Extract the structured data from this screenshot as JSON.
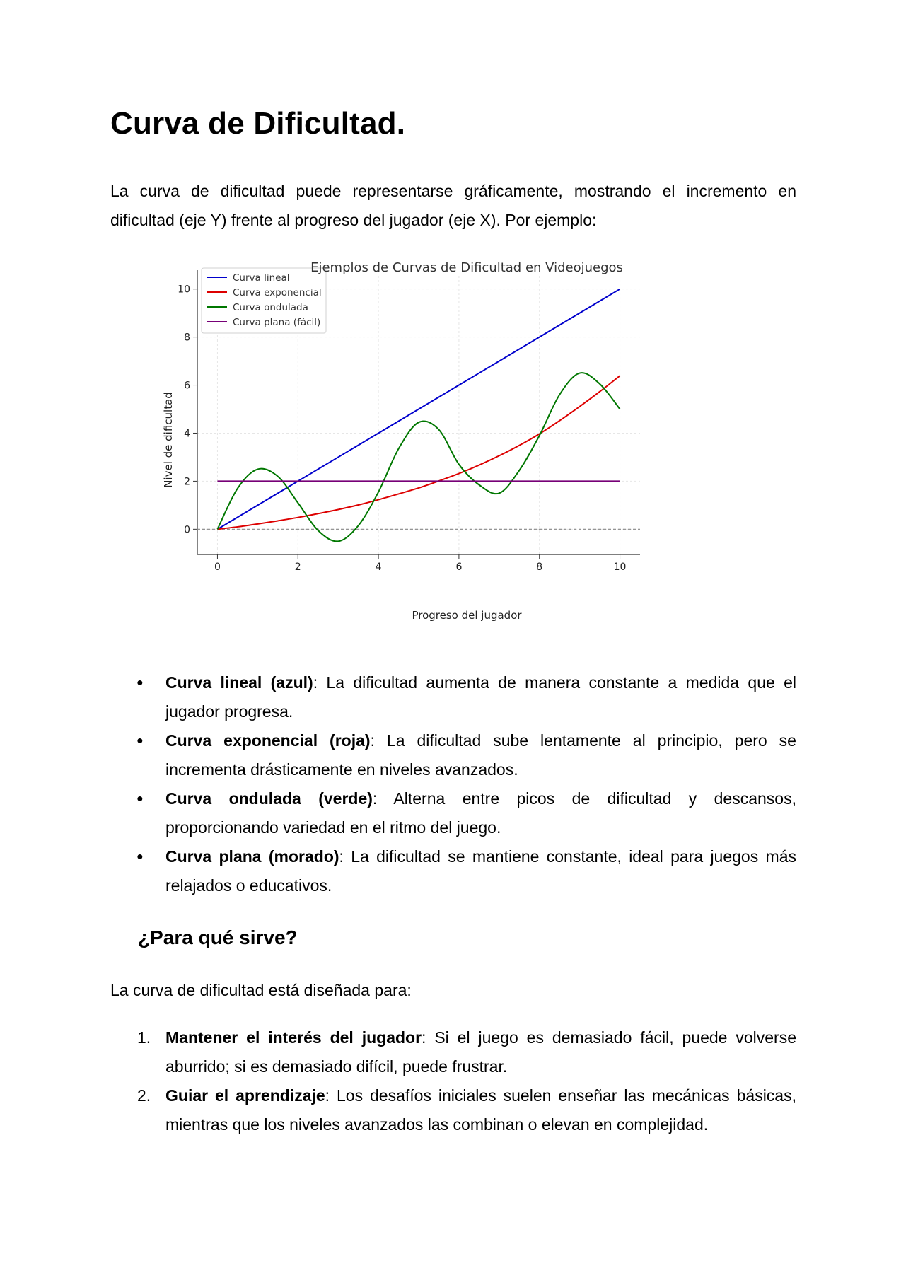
{
  "document": {
    "title": "Curva de Dificultad.",
    "intro": "La curva de dificultad puede representarse gráficamente, mostrando el incremento en dificultad (eje Y) frente al progreso del jugador (eje X). Por ejemplo:",
    "bullets": [
      {
        "term": "Curva lineal (azul)",
        "text": ": La dificultad aumenta de manera constante a medida que el jugador progresa."
      },
      {
        "term": "Curva exponencial (roja)",
        "text": ": La dificultad sube lentamente al principio, pero se incrementa drásticamente en niveles avanzados."
      },
      {
        "term": "Curva ondulada (verde)",
        "text": ": Alterna entre picos de dificultad y descansos, proporcionando variedad en el ritmo del juego."
      },
      {
        "term": "Curva plana (morado)",
        "text": ": La dificultad se mantiene constante, ideal para juegos más relajados o educativos."
      }
    ],
    "section_title": "¿Para qué sirve?",
    "section_lead": "La curva de dificultad está diseñada para:",
    "numbered": [
      {
        "num": "1.",
        "term": "Mantener el interés del jugador",
        "text": ": Si el juego es demasiado fácil, puede volverse aburrido; si es demasiado difícil, puede frustrar."
      },
      {
        "num": "2.",
        "term": "Guiar el aprendizaje",
        "text": ": Los desafíos iniciales suelen enseñar las mecánicas básicas, mientras que los niveles avanzados las combinan o elevan en complejidad."
      }
    ]
  },
  "chart_data": {
    "type": "line",
    "title": "Ejemplos de Curvas de Dificultad en Videojuegos",
    "xlabel": "Progreso del jugador",
    "ylabel": "Nivel de dificultad",
    "xlim": [
      -0.5,
      10.5
    ],
    "ylim": [
      -1.05,
      10.55
    ],
    "xticks": [
      0,
      2,
      4,
      6,
      8,
      10
    ],
    "yticks": [
      0,
      2,
      4,
      6,
      8,
      10
    ],
    "grid": true,
    "legend_position": "top-left",
    "reference_line": {
      "y": 0,
      "style": "dashed",
      "color": "#888888"
    },
    "x": [
      0,
      0.5,
      1,
      1.5,
      2,
      2.5,
      3,
      3.5,
      4,
      4.5,
      5,
      5.5,
      6,
      6.5,
      7,
      7.5,
      8,
      8.5,
      9,
      9.5,
      10
    ],
    "series": [
      {
        "name": "Curva lineal",
        "color": "#0000cc",
        "values": [
          0,
          0.5,
          1,
          1.5,
          2,
          2.5,
          3,
          3.5,
          4,
          4.5,
          5,
          5.5,
          6,
          6.5,
          7,
          7.5,
          8,
          8.5,
          9,
          9.5,
          10
        ]
      },
      {
        "name": "Curva exponencial",
        "color": "#dd0000",
        "values": [
          0,
          0.1,
          0.22,
          0.35,
          0.49,
          0.65,
          0.82,
          1.01,
          1.23,
          1.47,
          1.72,
          2.01,
          2.32,
          2.67,
          3.06,
          3.49,
          3.97,
          4.52,
          5.11,
          5.73,
          6.39
        ]
      },
      {
        "name": "Curva ondulada",
        "color": "#007700",
        "values": [
          0,
          1.7,
          2.5,
          2.2,
          1.1,
          -0.05,
          -0.5,
          0.15,
          1.55,
          3.35,
          4.45,
          4.15,
          2.7,
          1.85,
          1.5,
          2.45,
          3.9,
          5.6,
          6.5,
          6.05,
          5.0
        ]
      },
      {
        "name": "Curva plana (fácil)",
        "color": "#770077",
        "values": [
          2,
          2,
          2,
          2,
          2,
          2,
          2,
          2,
          2,
          2,
          2,
          2,
          2,
          2,
          2,
          2,
          2,
          2,
          2,
          2,
          2
        ]
      }
    ]
  }
}
